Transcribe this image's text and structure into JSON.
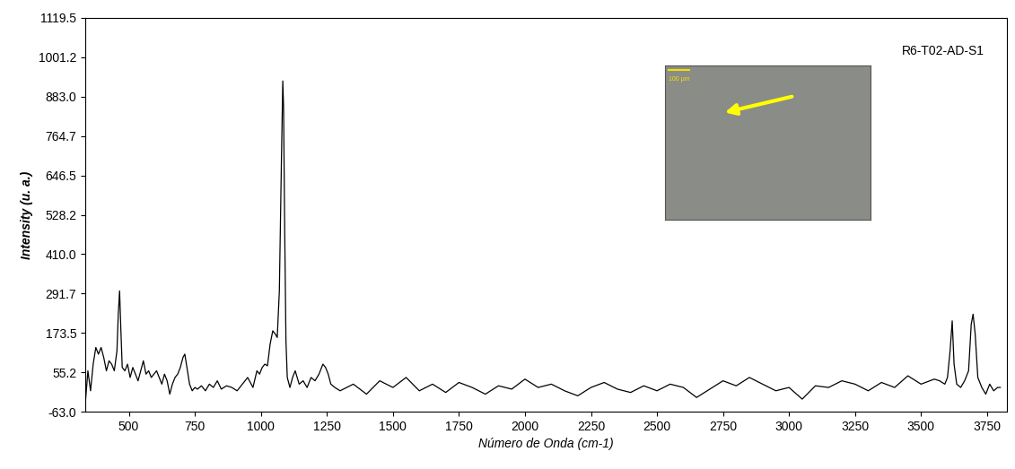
{
  "chart_data": {
    "type": "line",
    "title": "R6-T02-AD-S1",
    "x_label": "Número de Onda (cm-1)",
    "y_label": "Intensity (u. a.)",
    "annotations": [
      "100 µm"
    ],
    "color": "#000000",
    "grid": false,
    "x": [
      335,
      345,
      355,
      365,
      375,
      385,
      395,
      405,
      415,
      425,
      435,
      445,
      455,
      460,
      465,
      470,
      475,
      485,
      495,
      505,
      515,
      525,
      535,
      545,
      555,
      565,
      575,
      585,
      595,
      605,
      615,
      625,
      635,
      645,
      655,
      665,
      675,
      685,
      695,
      705,
      712,
      720,
      730,
      740,
      750,
      760,
      775,
      790,
      805,
      820,
      835,
      850,
      870,
      890,
      910,
      930,
      950,
      970,
      985,
      995,
      1005,
      1015,
      1025,
      1035,
      1045,
      1055,
      1062,
      1070,
      1078,
      1083,
      1086,
      1090,
      1095,
      1100,
      1110,
      1120,
      1130,
      1145,
      1160,
      1175,
      1190,
      1205,
      1220,
      1235,
      1245,
      1255,
      1265,
      1280,
      1300,
      1350,
      1400,
      1450,
      1500,
      1550,
      1600,
      1650,
      1700,
      1750,
      1800,
      1850,
      1900,
      1950,
      2000,
      2050,
      2100,
      2150,
      2200,
      2250,
      2300,
      2350,
      2400,
      2450,
      2500,
      2550,
      2600,
      2650,
      2700,
      2750,
      2800,
      2850,
      2900,
      2950,
      3000,
      3050,
      3100,
      3150,
      3200,
      3250,
      3300,
      3350,
      3400,
      3450,
      3500,
      3550,
      3570,
      3590,
      3600,
      3610,
      3618,
      3625,
      3635,
      3650,
      3665,
      3680,
      3690,
      3697,
      3705,
      3715,
      3730,
      3745,
      3760,
      3775,
      3790,
      3800
    ],
    "values": [
      -40,
      60,
      0,
      80,
      130,
      110,
      130,
      100,
      60,
      90,
      80,
      60,
      120,
      230,
      300,
      180,
      70,
      60,
      80,
      40,
      70,
      50,
      30,
      60,
      90,
      50,
      60,
      40,
      50,
      60,
      40,
      20,
      50,
      30,
      -10,
      20,
      40,
      50,
      70,
      100,
      110,
      70,
      20,
      0,
      10,
      5,
      15,
      0,
      20,
      10,
      30,
      5,
      15,
      10,
      0,
      20,
      40,
      10,
      60,
      50,
      70,
      80,
      75,
      140,
      180,
      170,
      160,
      300,
      700,
      930,
      850,
      500,
      150,
      40,
      10,
      40,
      60,
      20,
      30,
      10,
      40,
      30,
      50,
      80,
      70,
      50,
      20,
      10,
      0,
      20,
      -10,
      30,
      10,
      40,
      0,
      20,
      -5,
      25,
      10,
      -10,
      15,
      5,
      35,
      10,
      20,
      0,
      -15,
      10,
      25,
      5,
      -5,
      15,
      0,
      20,
      10,
      -20,
      5,
      30,
      15,
      40,
      20,
      0,
      10,
      -25,
      15,
      10,
      30,
      20,
      0,
      25,
      10,
      45,
      20,
      35,
      30,
      20,
      40,
      120,
      210,
      80,
      20,
      10,
      30,
      60,
      200,
      230,
      170,
      40,
      10,
      -10,
      20,
      0,
      10,
      10
    ],
    "xlim": [
      335,
      3825
    ],
    "ylim": [
      -63.0,
      1119.5
    ],
    "xticks": [
      500,
      750,
      1000,
      1250,
      1500,
      1750,
      2000,
      2250,
      2500,
      2750,
      3000,
      3250,
      3500,
      3750
    ],
    "yticks": [
      {
        "value": -63.0,
        "label": "-63.0"
      },
      55.2,
      173.5,
      291.7,
      {
        "value": 410.0,
        "label": "410.0"
      },
      528.2,
      646.5,
      764.7,
      {
        "value": 883.0,
        "label": "883.0"
      },
      1001.2,
      1119.5
    ]
  }
}
